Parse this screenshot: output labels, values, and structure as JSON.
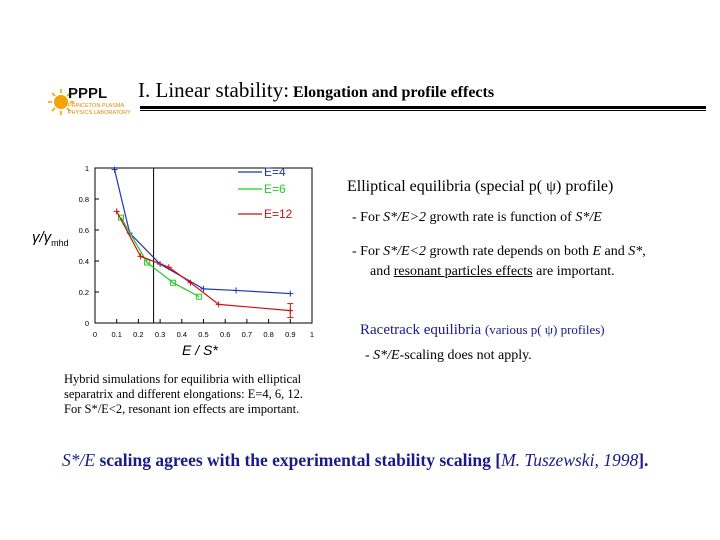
{
  "logo": {
    "letters": "PPPL",
    "sub1": "PRINCETON PLASMA",
    "sub2": "PHYSICS LABORATORY"
  },
  "title": {
    "main": "I. Linear stability:",
    "sub": "Elongation and profile effects"
  },
  "chart_data": {
    "type": "line",
    "xlabel": "E / S*",
    "ylabel_main": "γ/γ",
    "ylabel_sub": "mhd",
    "xlim": [
      0,
      1
    ],
    "ylim": [
      0,
      1
    ],
    "xticks": [
      "0",
      "0.1",
      "0.2",
      "0.3",
      "0.4",
      "0.5",
      "0.6",
      "0.7",
      "0.8",
      "0.9",
      "1"
    ],
    "yticks": [
      "0",
      "0.2",
      "0.4",
      "0.6",
      "0.8",
      "1"
    ],
    "series": [
      {
        "name": "E=4",
        "color": "#2233bb",
        "marker": "plus",
        "x": [
          0.09,
          0.16,
          0.3,
          0.5,
          0.65,
          0.9
        ],
        "y": [
          0.99,
          0.58,
          0.38,
          0.22,
          0.21,
          0.19
        ]
      },
      {
        "name": "E=6",
        "color": "#22cc22",
        "marker": "square",
        "x": [
          0.12,
          0.24,
          0.36,
          0.48
        ],
        "y": [
          0.68,
          0.39,
          0.26,
          0.17
        ]
      },
      {
        "name": "E=12",
        "color": "#cc1111",
        "marker": "plus",
        "x": [
          0.1,
          0.21,
          0.34,
          0.44,
          0.57,
          0.9
        ],
        "y": [
          0.72,
          0.43,
          0.36,
          0.26,
          0.12,
          0.08
        ]
      }
    ]
  },
  "elliptical": {
    "title": "Elliptical equilibria (special p( ψ) profile)",
    "b1_pre": "- For ",
    "b1_sym": "S*/E>2",
    "b1_mid": " growth rate is function of ",
    "b1_sym2": "S*/E",
    ".": ".",
    "b2_pre": "- For ",
    "b2_sym": "S*/E<2",
    "b2_mid": " growth rate depends on both ",
    "b2_e": "E",
    "b2_and": " and ",
    "b2_s": "S*",
    "b2_end": ",",
    "b2_line2_pre": "and ",
    "b2_line2_ul": "resonant particles effects",
    "b2_line2_end": " are important."
  },
  "racetrack": {
    "title": "Racetrack equilibria",
    "profiles": "(various p( ψ) profiles)",
    "b_pre": "- ",
    "b_sym": "S*/E",
    "b_end": "-scaling does not apply."
  },
  "caption": [
    "Hybrid simulations for equilibria with elliptical",
    "separatrix and different elongations: E=4, 6, 12.",
    "For S*/E<2, resonant ion effects are important."
  ],
  "conclusion": {
    "sym": "S*/E",
    "mid": " scaling agrees with the experimental stability scaling [",
    "ref": "M. Tuszewski, 1998",
    "end": "]."
  }
}
